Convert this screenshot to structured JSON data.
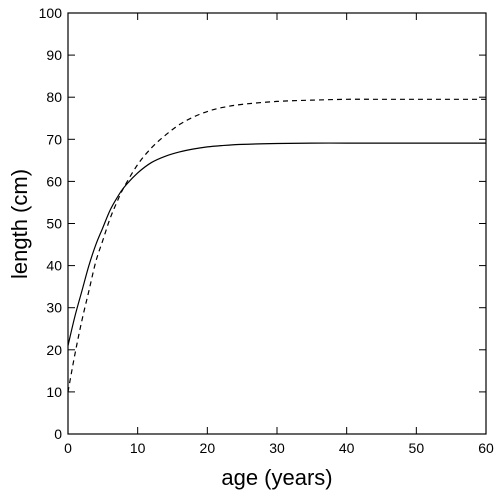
{
  "chart_data": {
    "type": "line",
    "title": "",
    "xlabel": "age (years)",
    "ylabel": "length (cm)",
    "xlim": [
      0,
      60
    ],
    "ylim": [
      0,
      100
    ],
    "grid": false,
    "legend": "none",
    "xticks": [
      "0",
      "10",
      "20",
      "30",
      "40",
      "50",
      "60"
    ],
    "yticks": [
      "0",
      "10",
      "20",
      "30",
      "40",
      "50",
      "60",
      "70",
      "80",
      "90",
      "100"
    ],
    "series": [
      {
        "style": "solid",
        "color": "#000000",
        "x": [
          0,
          1,
          2,
          3,
          4,
          5,
          6,
          7,
          8,
          10,
          12,
          14,
          16,
          18,
          20,
          22,
          25,
          30,
          35,
          40,
          45,
          50,
          55,
          60
        ],
        "y": [
          21,
          28,
          34,
          40,
          45,
          49,
          53,
          56,
          58.5,
          62,
          64.5,
          66,
          67,
          67.7,
          68.2,
          68.5,
          68.8,
          69,
          69.1,
          69.1,
          69.1,
          69.1,
          69.1,
          69.1
        ]
      },
      {
        "style": "dashed",
        "color": "#000000",
        "x": [
          0,
          1,
          2,
          3,
          4,
          5,
          6,
          7,
          8,
          10,
          12,
          14,
          16,
          18,
          20,
          22,
          25,
          30,
          35,
          40,
          45,
          50,
          55,
          60
        ],
        "y": [
          10,
          19,
          27,
          34,
          41,
          46,
          51,
          55,
          58.5,
          64,
          68,
          71,
          73.5,
          75.3,
          76.6,
          77.5,
          78.3,
          79,
          79.3,
          79.5,
          79.5,
          79.5,
          79.5,
          79.5
        ]
      }
    ]
  }
}
